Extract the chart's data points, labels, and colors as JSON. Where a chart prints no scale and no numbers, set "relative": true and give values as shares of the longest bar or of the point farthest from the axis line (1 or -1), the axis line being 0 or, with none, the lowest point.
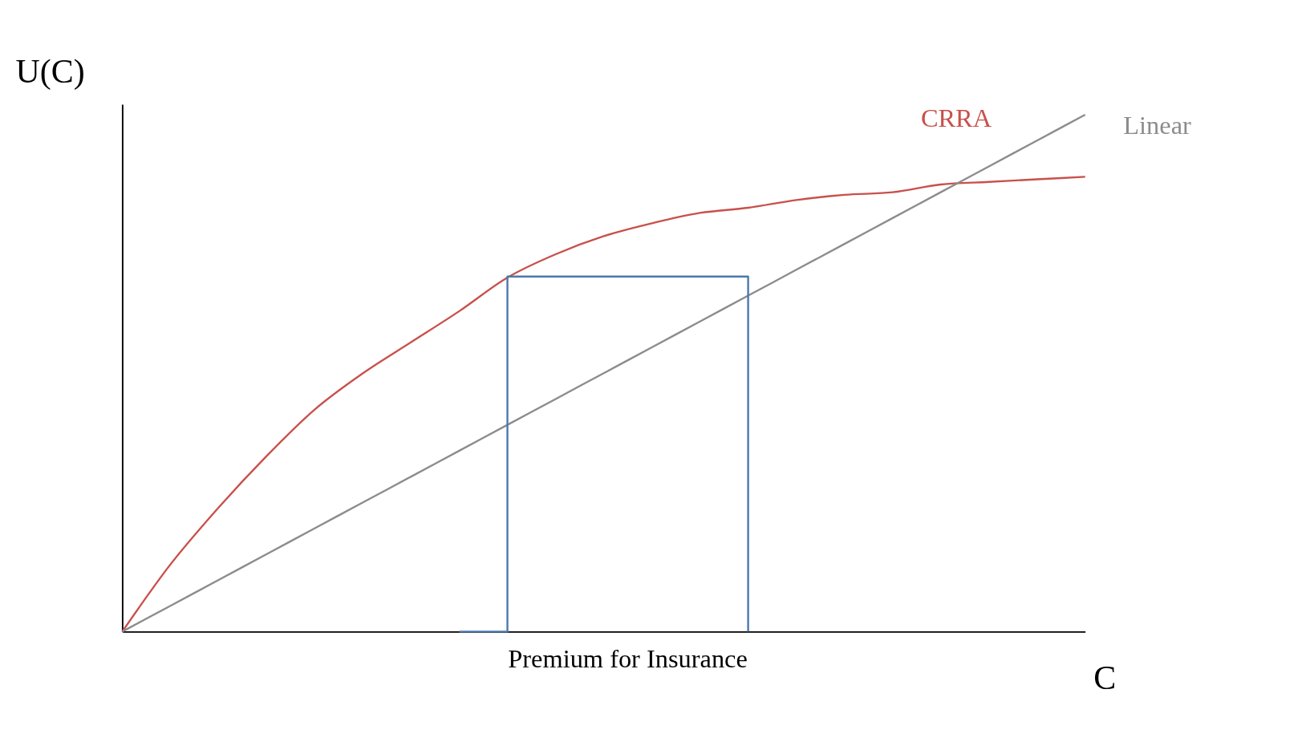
{
  "chart_data": {
    "type": "line",
    "relative": true,
    "xlabel": "C",
    "ylabel": "U(C)",
    "categories": [
      null,
      null,
      null,
      null,
      null,
      null,
      null,
      null,
      null,
      null,
      null,
      null,
      null,
      null,
      null,
      null,
      null,
      null,
      null,
      null,
      null
    ],
    "series": [
      {
        "name": "CRRA",
        "color": "#c9504b",
        "values": [
          0,
          0.13,
          0.24,
          0.34,
          0.43,
          0.5,
          0.56,
          0.62,
          0.685,
          0.73,
          0.765,
          0.79,
          0.81,
          0.82,
          0.835,
          0.845,
          0.85,
          0.865,
          0.87,
          0.875,
          0.88
        ]
      },
      {
        "name": "Linear",
        "color": "#8c8c8c",
        "values": [
          0,
          0.05,
          0.1,
          0.15,
          0.2,
          0.25,
          0.3,
          0.35,
          0.4,
          0.45,
          0.5,
          0.55,
          0.6,
          0.65,
          0.7,
          0.75,
          0.8,
          0.85,
          0.9,
          0.95,
          1
        ]
      },
      {
        "type": "step",
        "color": "#4a78ad",
        "values": [
          null,
          null,
          null,
          null,
          null,
          null,
          null,
          0,
          0.687,
          0.687,
          0.687,
          0.687,
          0.687,
          0,
          null,
          null,
          null,
          null,
          null,
          null,
          null
        ]
      }
    ],
    "annotations": [
      "Premium for Insurance"
    ],
    "legend": false,
    "marker": "none",
    "line_style": "solid"
  }
}
